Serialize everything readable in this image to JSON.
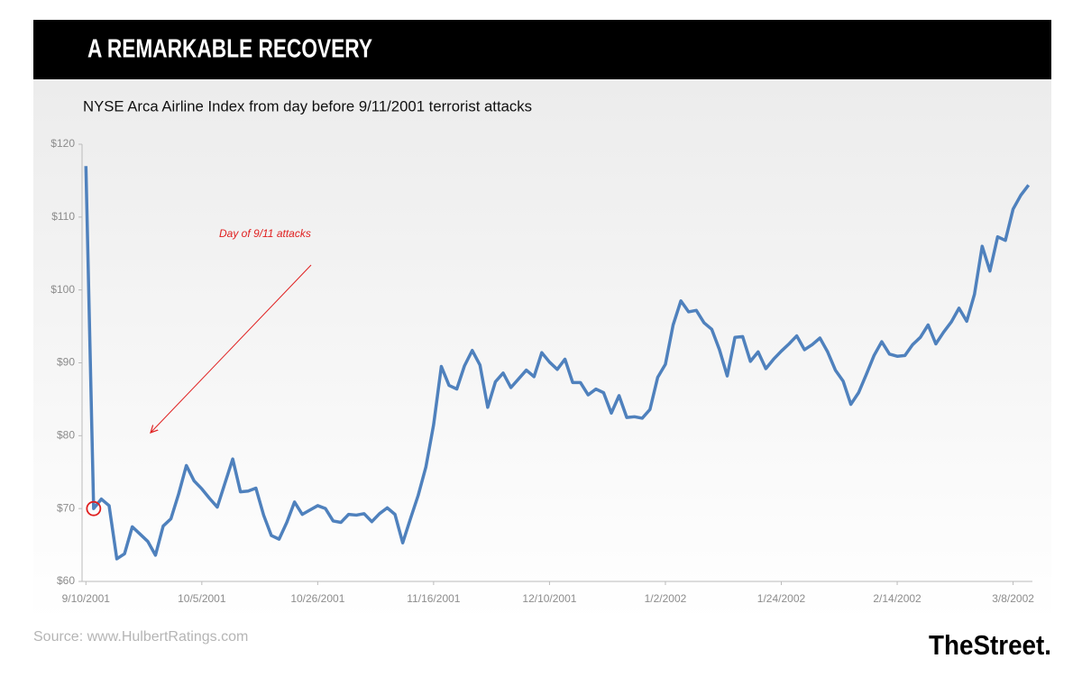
{
  "chart_data": {
    "type": "line",
    "title": "A REMARKABLE RECOVERY",
    "subtitle": "NYSE Arca Airline Index from day before 9/11/2001 terrorist attacks",
    "annotation": "Day of 9/11 attacks",
    "source": "Source: www.HulbertRatings.com",
    "logo": "TheStreet.",
    "color": "#4f81bd",
    "categories": [
      "9/10/2001",
      null,
      null,
      null,
      null,
      null,
      null,
      null,
      null,
      null,
      null,
      null,
      null,
      null,
      null,
      "10/5/2001",
      null,
      null,
      null,
      null,
      null,
      null,
      null,
      null,
      null,
      null,
      null,
      null,
      null,
      null,
      "10/26/2001",
      null,
      null,
      null,
      null,
      null,
      null,
      null,
      null,
      null,
      null,
      null,
      null,
      null,
      null,
      "11/16/2001",
      null,
      null,
      null,
      null,
      null,
      null,
      null,
      null,
      null,
      null,
      null,
      null,
      null,
      null,
      "12/10/2001",
      null,
      null,
      null,
      null,
      null,
      null,
      null,
      null,
      null,
      null,
      null,
      null,
      null,
      null,
      "1/2/2002",
      null,
      null,
      null,
      null,
      null,
      null,
      null,
      null,
      null,
      null,
      null,
      null,
      null,
      null,
      "1/24/2002",
      null,
      null,
      null,
      null,
      null,
      null,
      null,
      null,
      null,
      null,
      null,
      null,
      null,
      null,
      "2/14/2002",
      null,
      null,
      null,
      null,
      null,
      null,
      null,
      null,
      null,
      null,
      null,
      null,
      null,
      null,
      "3/8/2002",
      null,
      null
    ],
    "values": [
      117,
      70,
      71.3,
      70.4,
      63.1,
      63.8,
      67.5,
      66.5,
      65.5,
      63.6,
      67.6,
      68.6,
      72,
      75.9,
      73.8,
      72.7,
      71.4,
      70.2,
      73.5,
      76.8,
      72.3,
      72.4,
      72.8,
      69.1,
      66.3,
      65.8,
      68.1,
      70.9,
      69.2,
      69.8,
      70.4,
      70,
      68.3,
      68.1,
      69.2,
      69.1,
      69.3,
      68.2,
      69.3,
      70.1,
      69.2,
      65.3,
      68.6,
      71.8,
      75.7,
      81.5,
      89.5,
      86.9,
      86.4,
      89.6,
      91.7,
      89.7,
      83.9,
      87.4,
      88.6,
      86.6,
      87.8,
      89,
      88.1,
      91.4,
      90.1,
      89.1,
      90.5,
      87.3,
      87.3,
      85.6,
      86.4,
      85.9,
      83.1,
      85.5,
      82.5,
      82.6,
      82.4,
      83.6,
      88,
      89.8,
      95.2,
      98.5,
      97,
      97.2,
      95.5,
      94.6,
      91.8,
      88.2,
      93.5,
      93.6,
      90.2,
      91.5,
      89.2,
      90.5,
      91.6,
      92.6,
      93.7,
      91.8,
      92.5,
      93.4,
      91.5,
      89,
      87.5,
      84.3,
      85.9,
      88.4,
      91,
      92.9,
      91.2,
      90.9,
      91,
      92.5,
      93.5,
      95.2,
      92.6,
      94.2,
      95.6,
      97.5,
      95.7,
      99.4,
      106,
      102.6,
      107.3,
      106.8,
      111.1,
      113,
      114.4
    ],
    "ylim": [
      60,
      120
    ],
    "yticks": [
      {
        "value": 60,
        "label": "$60"
      },
      {
        "value": 70,
        "label": "$70"
      },
      {
        "value": 80,
        "label": "$80"
      },
      {
        "value": 90,
        "label": "$90"
      },
      {
        "value": 100,
        "label": "$100"
      },
      {
        "value": 110,
        "label": "$110"
      },
      {
        "value": 120,
        "label": "$120"
      }
    ],
    "grid": false
  }
}
